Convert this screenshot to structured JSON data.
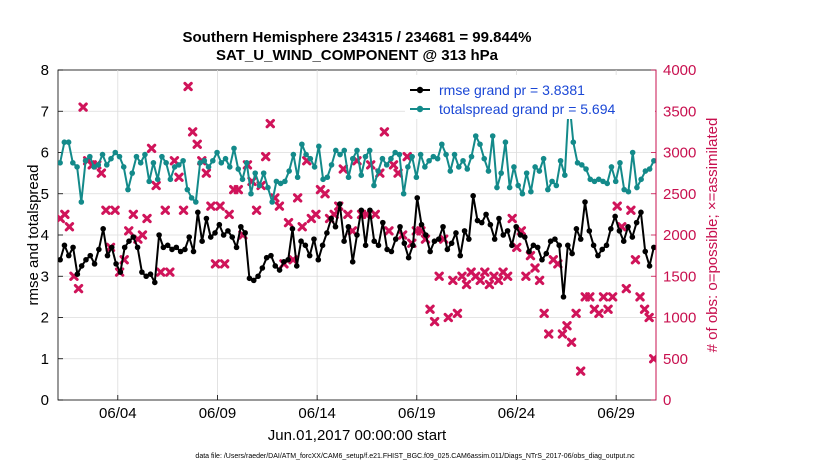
{
  "chart_data": {
    "type": "line",
    "title_line1": "Southern Hemisphere 234315 / 234681 = 99.844%",
    "title_line2": "SAT_U_WIND_COMPONENT @ 313 hPa",
    "ylabel_left": "rmse and totalspread",
    "ylabel_right": "# of obs: o=possible; ×=assimilated",
    "xlabel": "Jun.01,2017 00:00:00 start",
    "footnote": "data file: /Users/raeder/DAI/ATM_forcXX/CAM6_setup/f.e21.FHIST_BGC.f09_025.CAM6assim.011/Diags_NTrS_2017-06/obs_diag_output.nc",
    "x_range_days": [
      1,
      31
    ],
    "ylim_left": [
      0,
      8
    ],
    "ylim_right": [
      0,
      4000
    ],
    "yticks_left": [
      "0",
      "1",
      "2",
      "3",
      "4",
      "5",
      "6",
      "7",
      "8"
    ],
    "yticks_right": [
      "0",
      "500",
      "1000",
      "1500",
      "2000",
      "2500",
      "3000",
      "3500",
      "4000"
    ],
    "xticks": [
      "06/04",
      "06/09",
      "06/14",
      "06/19",
      "06/24",
      "06/29"
    ],
    "legend": [
      {
        "name": "rmse grand pr = 3.8381"
      },
      {
        "name": "totalspread grand pr = 5.694"
      }
    ],
    "colors": {
      "rmse": "#000000",
      "totalspread": "#138a8a",
      "obs": "#d0145a",
      "right_axis": "#c8104f",
      "legend_text": "#1a47d6"
    },
    "series": [
      {
        "name": "rmse",
        "axis": "left",
        "values": [
          3.4,
          3.75,
          3.5,
          3.7,
          3.05,
          3.25,
          3.4,
          3.5,
          3.3,
          3.65,
          4.15,
          3.5,
          3.7,
          3.3,
          3.1,
          3.7,
          3.85,
          3.95,
          3.7,
          3.1,
          3.0,
          3.05,
          2.85,
          4.0,
          3.7,
          3.75,
          3.65,
          3.7,
          3.6,
          3.65,
          3.95,
          3.6,
          4.55,
          3.85,
          4.4,
          3.95,
          4.05,
          4.25,
          4.0,
          4.1,
          3.95,
          3.7,
          4.2,
          4.05,
          2.95,
          2.9,
          3.0,
          3.2,
          3.45,
          3.5,
          3.25,
          3.15,
          3.35,
          3.4,
          4.15,
          3.25,
          3.85,
          3.75,
          3.5,
          3.9,
          3.4,
          3.75,
          4.05,
          4.4,
          4.2,
          4.75,
          3.85,
          4.2,
          3.35,
          4.0,
          4.6,
          3.75,
          4.6,
          3.85,
          3.75,
          4.3,
          3.65,
          3.6,
          3.9,
          4.2,
          3.8,
          3.45,
          3.75,
          4.9,
          4.25,
          4.0,
          3.6,
          3.85,
          3.9,
          4.2,
          3.65,
          3.8,
          4.05,
          3.5,
          4.1,
          3.9,
          4.95,
          4.35,
          4.3,
          4.5,
          4.25,
          3.9,
          4.4,
          4.0,
          4.1,
          3.75,
          4.2,
          4.0,
          3.95,
          3.6,
          3.75,
          3.7,
          3.4,
          3.55,
          3.85,
          3.9,
          3.75,
          2.5,
          3.75,
          3.55,
          4.15,
          3.9,
          4.8,
          4.1,
          3.75,
          3.5,
          3.65,
          3.75,
          4.15,
          4.45,
          4.1,
          3.85,
          4.2,
          3.95,
          4.3,
          4.55,
          3.6,
          3.25,
          3.7
        ]
      },
      {
        "name": "totalspread",
        "axis": "left",
        "values": [
          5.75,
          6.25,
          6.25,
          5.75,
          5.65,
          4.8,
          5.8,
          5.9,
          5.65,
          5.7,
          5.95,
          5.7,
          5.85,
          6.0,
          5.9,
          5.65,
          5.1,
          5.5,
          5.9,
          5.75,
          5.95,
          5.3,
          5.75,
          5.35,
          5.9,
          5.75,
          5.35,
          5.65,
          5.7,
          5.8,
          5.1,
          4.9,
          4.8,
          5.75,
          5.8,
          5.65,
          5.8,
          6.0,
          5.75,
          5.85,
          5.65,
          6.1,
          5.6,
          5.35,
          5.75,
          5.0,
          5.5,
          5.2,
          5.5,
          5.15,
          4.8,
          5.3,
          5.25,
          5.3,
          5.55,
          5.95,
          5.4,
          6.2,
          5.95,
          5.85,
          5.65,
          6.15,
          5.35,
          5.4,
          5.7,
          6.05,
          5.95,
          6.05,
          5.4,
          5.85,
          6.05,
          5.45,
          5.9,
          6.05,
          5.2,
          5.55,
          5.85,
          5.7,
          5.85,
          6.0,
          5.95,
          5.0,
          5.65,
          5.9,
          5.4,
          5.95,
          5.65,
          5.8,
          5.9,
          5.85,
          6.2,
          5.95,
          5.55,
          5.95,
          5.65,
          5.8,
          5.6,
          5.9,
          6.4,
          6.2,
          5.85,
          5.55,
          6.4,
          5.15,
          5.5,
          6.25,
          5.15,
          5.65,
          5.2,
          5.0,
          5.5,
          5.05,
          5.65,
          5.55,
          5.85,
          5.1,
          5.3,
          5.2,
          5.8,
          5.45,
          7.3,
          6.25,
          5.75,
          5.7,
          5.6,
          5.35,
          5.3,
          5.35,
          5.3,
          5.25,
          5.65,
          5.3,
          5.75,
          5.1,
          5.05,
          6.0,
          5.15,
          5.35,
          5.55,
          5.6,
          5.8
        ]
      },
      {
        "name": "obs_assimilated",
        "axis": "right",
        "values": [
          2200,
          2250,
          2100,
          1500,
          1350,
          3550,
          2900,
          2850,
          2850,
          2750,
          2300,
          1850,
          2300,
          1550,
          1700,
          2050,
          2250,
          1950,
          2000,
          2200,
          3050,
          2600,
          1550,
          2300,
          1550,
          2900,
          2700,
          2300,
          3800,
          3250,
          3100,
          2900,
          2750,
          2350,
          1650,
          2350,
          1650,
          2250,
          2550,
          2550,
          2000,
          2850,
          2650,
          2300,
          2600,
          2950,
          3350,
          2450,
          2350,
          1650,
          2150,
          1700,
          2450,
          2100,
          2900,
          2200,
          2250,
          2550,
          2500,
          2200,
          2250,
          2350,
          2800,
          2250,
          2050,
          2900,
          2250,
          2250,
          2850,
          2250,
          2750,
          3250,
          2050,
          2850,
          2750,
          2000,
          2950,
          1900,
          2050,
          2050,
          1950,
          1100,
          950,
          1500,
          1950,
          1000,
          1450,
          1050,
          1500,
          1400,
          1550,
          1500,
          1450,
          1550,
          1400,
          1500,
          1450,
          1550,
          1500,
          2200,
          1850,
          2050,
          1500,
          1750,
          1600,
          1450,
          1050,
          800,
          1700,
          1650,
          800,
          900,
          700,
          1050,
          350,
          1250,
          1250,
          1100,
          1050,
          1250,
          1100,
          1250,
          2350,
          2100,
          1350,
          2300,
          1700,
          1250,
          1100,
          1000,
          500
        ]
      }
    ]
  }
}
